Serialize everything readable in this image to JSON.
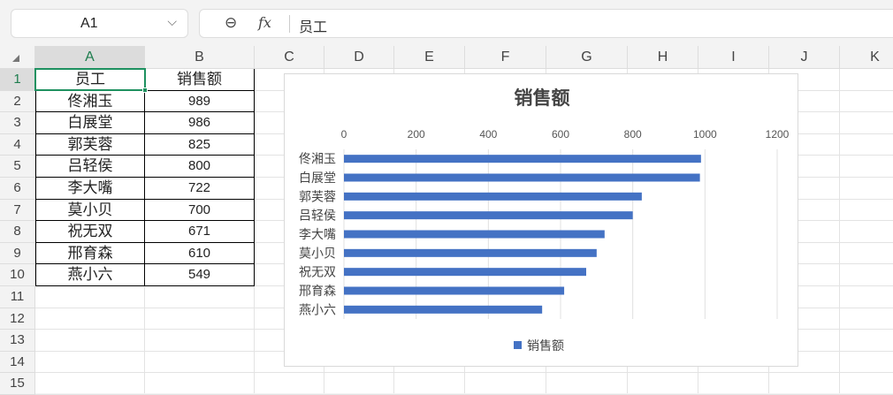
{
  "name_box": {
    "value": "A1"
  },
  "formula_bar": {
    "value": "员工"
  },
  "columns": [
    "A",
    "B",
    "C",
    "D",
    "E",
    "F",
    "G",
    "H",
    "I",
    "J",
    "K"
  ],
  "rows": [
    "1",
    "2",
    "3",
    "4",
    "5",
    "6",
    "7",
    "8",
    "9",
    "10",
    "11",
    "12",
    "13",
    "14",
    "15"
  ],
  "table": {
    "headers": [
      "员工",
      "销售额"
    ],
    "rows": [
      [
        "佟湘玉",
        "989"
      ],
      [
        "白展堂",
        "986"
      ],
      [
        "郭芙蓉",
        "825"
      ],
      [
        "吕轻侯",
        "800"
      ],
      [
        "李大嘴",
        "722"
      ],
      [
        "莫小贝",
        "700"
      ],
      [
        "祝无双",
        "671"
      ],
      [
        "邢育森",
        "610"
      ],
      [
        "燕小六",
        "549"
      ]
    ]
  },
  "chart_data": {
    "type": "bar",
    "orientation": "horizontal",
    "title": "销售额",
    "categories": [
      "佟湘玉",
      "白展堂",
      "郭芙蓉",
      "吕轻侯",
      "李大嘴",
      "莫小贝",
      "祝无双",
      "邢育森",
      "燕小六"
    ],
    "series": [
      {
        "name": "销售额",
        "values": [
          989,
          986,
          825,
          800,
          722,
          700,
          671,
          610,
          549
        ],
        "color": "#4472c4"
      }
    ],
    "xlim": [
      0,
      1200
    ],
    "xticks": [
      "0",
      "200",
      "400",
      "600",
      "800",
      "1000",
      "1200"
    ],
    "x_axis_position": "top",
    "grid": true,
    "legend": "bottom"
  },
  "colors": {
    "accent": "#1e9160",
    "bar": "#4472c4"
  }
}
